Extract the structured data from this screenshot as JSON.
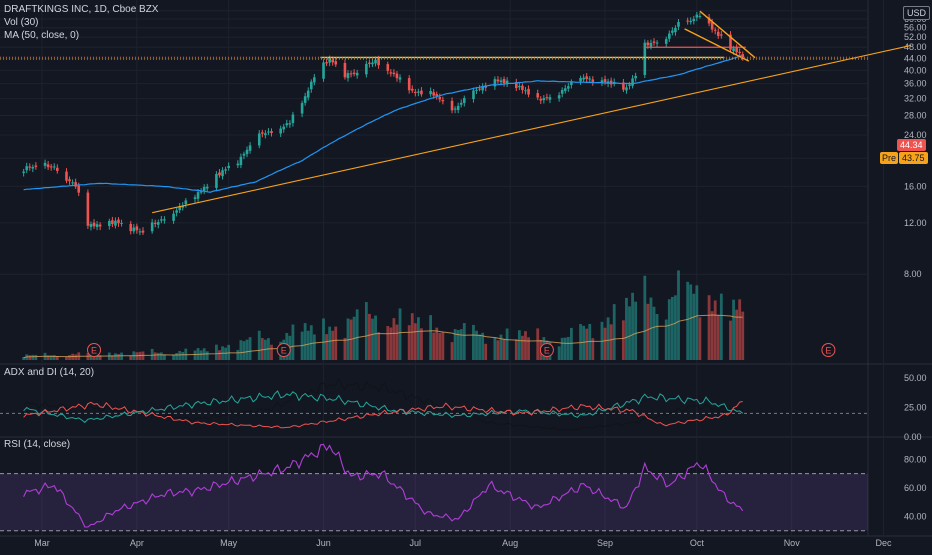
{
  "header": {
    "symbol_line": "DRAFTKINGS INC, 1D, Cboe BZX",
    "volume_label": "Vol (30)",
    "ma_label": "MA (50, close, 0)",
    "currency": "USD"
  },
  "price_tags": {
    "last": "44.34",
    "pre_label": "Pre",
    "pre": "43.75"
  },
  "indicators": {
    "adx_label": "ADX and DI (14, 20)",
    "rsi_label": "RSI (14, close)"
  },
  "colors": {
    "background": "#131722",
    "up": "#26a69a",
    "down": "#ef5350",
    "ma": "#2196f3",
    "trend": "#f7a21b",
    "resistance": "#c8d64a",
    "rsi": "#b03ed6"
  },
  "earnings_marker": "E",
  "chart_data": [
    {
      "type": "candlestick",
      "title": "DRAFTKINGS INC, 1D, Cboe BZX",
      "x_ticks": [
        "Mar",
        "Apr",
        "May",
        "Jun",
        "Jul",
        "Aug",
        "Sep",
        "Oct",
        "Nov",
        "Dec"
      ],
      "y_ticks": [
        8.0,
        12.0,
        16.0,
        20.0,
        24.0,
        28.0,
        32.0,
        36.0,
        40.0,
        44.0,
        48.0,
        52.0,
        56.0,
        60.0,
        64.0
      ],
      "ylim": [
        4,
        67
      ],
      "scale": "log",
      "last_price": 44.34,
      "premarket_price": 43.75,
      "anchors": [
        [
          "2020-02-24",
          18.4
        ],
        [
          "2020-03-05",
          18.8
        ],
        [
          "2020-03-12",
          16.0
        ],
        [
          "2020-03-16",
          11.6
        ],
        [
          "2020-03-25",
          12.2
        ],
        [
          "2020-04-03",
          11.0
        ],
        [
          "2020-04-10",
          12.6
        ],
        [
          "2020-04-20",
          14.6
        ],
        [
          "2020-04-29",
          18.2
        ],
        [
          "2020-05-05",
          20.0
        ],
        [
          "2020-05-12",
          24.2
        ],
        [
          "2020-05-21",
          26.5
        ],
        [
          "2020-05-26",
          32.0
        ],
        [
          "2020-05-29",
          38.3
        ],
        [
          "2020-06-03",
          44.1
        ],
        [
          "2020-06-08",
          39.0
        ],
        [
          "2020-06-12",
          38.5
        ],
        [
          "2020-06-18",
          43.5
        ],
        [
          "2020-06-24",
          38.8
        ],
        [
          "2020-06-30",
          33.5
        ],
        [
          "2020-07-07",
          33.2
        ],
        [
          "2020-07-14",
          29.5
        ],
        [
          "2020-07-21",
          34.0
        ],
        [
          "2020-07-27",
          37.6
        ],
        [
          "2020-08-04",
          34.8
        ],
        [
          "2020-08-10",
          31.5
        ],
        [
          "2020-08-17",
          33.8
        ],
        [
          "2020-08-25",
          37.4
        ],
        [
          "2020-09-01",
          37.0
        ],
        [
          "2020-09-08",
          34.5
        ],
        [
          "2020-09-11",
          38.2
        ],
        [
          "2020-09-14",
          48.5
        ],
        [
          "2020-09-21",
          52.5
        ],
        [
          "2020-09-25",
          57.0
        ],
        [
          "2020-09-29",
          58.5
        ],
        [
          "2020-10-02",
          63.0
        ],
        [
          "2020-10-06",
          56.0
        ],
        [
          "2020-10-12",
          48.0
        ],
        [
          "2020-10-16",
          44.34
        ]
      ],
      "moving_average": {
        "name": "MA (50, close, 0)",
        "anchors": [
          [
            "2020-02-24",
            15.6
          ],
          [
            "2020-03-20",
            16.4
          ],
          [
            "2020-04-10",
            16.0
          ],
          [
            "2020-04-25",
            15.3
          ],
          [
            "2020-05-10",
            16.6
          ],
          [
            "2020-05-25",
            19.6
          ],
          [
            "2020-06-10",
            24.5
          ],
          [
            "2020-06-25",
            29.3
          ],
          [
            "2020-07-10",
            33.0
          ],
          [
            "2020-07-25",
            35.5
          ],
          [
            "2020-08-10",
            36.8
          ],
          [
            "2020-08-25",
            36.4
          ],
          [
            "2020-09-10",
            36.0
          ],
          [
            "2020-09-25",
            38.6
          ],
          [
            "2020-10-10",
            43.0
          ],
          [
            "2020-10-16",
            45.0
          ]
        ]
      },
      "drawings": {
        "resistance": {
          "from": [
            "2020-05-31",
            44.3
          ],
          "to": [
            "2020-10-10",
            44.3
          ]
        },
        "support": {
          "from": [
            "2020-04-06",
            13.0
          ],
          "to": [
            "2020-12-10",
            48.7
          ]
        },
        "breakout_level": {
          "from": [
            "2020-09-14",
            48.0
          ],
          "to": [
            "2020-10-17",
            48.0
          ]
        },
        "wedge_upper": {
          "from": [
            "2020-10-02",
            63.8
          ],
          "to": [
            "2020-10-20",
            44.2
          ]
        },
        "wedge_lower": {
          "from": [
            "2020-09-27",
            55.5
          ],
          "to": [
            "2020-10-18",
            43.0
          ]
        }
      },
      "earnings_dates": [
        "2020-03-18",
        "2020-05-19",
        "2020-08-13",
        "2020-11-13"
      ]
    },
    {
      "type": "bar",
      "title": "Vol (30)",
      "note": "volume bars coloured by candle direction with 30-period average",
      "anchors": [
        [
          "2020-02-24",
          2
        ],
        [
          "2020-04-20",
          4
        ],
        [
          "2020-05-29",
          14
        ],
        [
          "2020-06-18",
          20
        ],
        [
          "2020-07-20",
          12
        ],
        [
          "2020-08-20",
          10
        ],
        [
          "2020-09-14",
          28
        ],
        [
          "2020-10-02",
          30
        ],
        [
          "2020-10-16",
          22
        ]
      ]
    },
    {
      "type": "line",
      "title": "ADX and DI (14, 20)",
      "y_ticks": [
        0.0,
        25.0,
        50.0
      ],
      "ylim": [
        0,
        60
      ],
      "series": [
        {
          "name": "ADX",
          "anchors": [
            [
              "2020-02-24",
              28
            ],
            [
              "2020-03-20",
              24
            ],
            [
              "2020-04-20",
              15
            ],
            [
              "2020-05-15",
              24
            ],
            [
              "2020-06-03",
              45
            ],
            [
              "2020-06-20",
              42
            ],
            [
              "2020-07-05",
              30
            ],
            [
              "2020-07-25",
              12
            ],
            [
              "2020-08-20",
              6
            ],
            [
              "2020-09-10",
              12
            ],
            [
              "2020-09-30",
              26
            ],
            [
              "2020-10-16",
              22
            ]
          ]
        },
        {
          "name": "+DI",
          "anchors": [
            [
              "2020-02-24",
              24
            ],
            [
              "2020-03-15",
              14
            ],
            [
              "2020-04-20",
              28
            ],
            [
              "2020-05-20",
              36
            ],
            [
              "2020-06-05",
              32
            ],
            [
              "2020-06-25",
              22
            ],
            [
              "2020-07-15",
              18
            ],
            [
              "2020-08-05",
              22
            ],
            [
              "2020-08-25",
              18
            ],
            [
              "2020-09-15",
              34
            ],
            [
              "2020-10-05",
              30
            ],
            [
              "2020-10-16",
              20
            ]
          ]
        },
        {
          "name": "-DI",
          "anchors": [
            [
              "2020-02-24",
              18
            ],
            [
              "2020-03-18",
              28
            ],
            [
              "2020-04-20",
              12
            ],
            [
              "2020-05-20",
              8
            ],
            [
              "2020-06-20",
              20
            ],
            [
              "2020-07-10",
              26
            ],
            [
              "2020-08-05",
              20
            ],
            [
              "2020-08-25",
              26
            ],
            [
              "2020-09-10",
              22
            ],
            [
              "2020-09-20",
              10
            ],
            [
              "2020-10-10",
              18
            ],
            [
              "2020-10-16",
              30
            ]
          ]
        }
      ],
      "threshold": 20
    },
    {
      "type": "line",
      "title": "RSI (14, close)",
      "y_ticks": [
        40.0,
        60.0,
        80.0
      ],
      "ylim": [
        27,
        95
      ],
      "band": [
        30,
        70
      ],
      "series": [
        {
          "name": "RSI",
          "anchors": [
            [
              "2020-02-24",
              56
            ],
            [
              "2020-03-05",
              62
            ],
            [
              "2020-03-16",
              32
            ],
            [
              "2020-03-25",
              44
            ],
            [
              "2020-04-10",
              56
            ],
            [
              "2020-04-20",
              58
            ],
            [
              "2020-05-05",
              66
            ],
            [
              "2020-05-20",
              74
            ],
            [
              "2020-06-03",
              90
            ],
            [
              "2020-06-10",
              68
            ],
            [
              "2020-06-20",
              70
            ],
            [
              "2020-07-05",
              42
            ],
            [
              "2020-07-15",
              38
            ],
            [
              "2020-07-25",
              62
            ],
            [
              "2020-08-10",
              46
            ],
            [
              "2020-08-25",
              62
            ],
            [
              "2020-09-08",
              46
            ],
            [
              "2020-09-14",
              74
            ],
            [
              "2020-09-22",
              62
            ],
            [
              "2020-10-02",
              78
            ],
            [
              "2020-10-10",
              54
            ],
            [
              "2020-10-16",
              44
            ]
          ]
        }
      ]
    }
  ]
}
